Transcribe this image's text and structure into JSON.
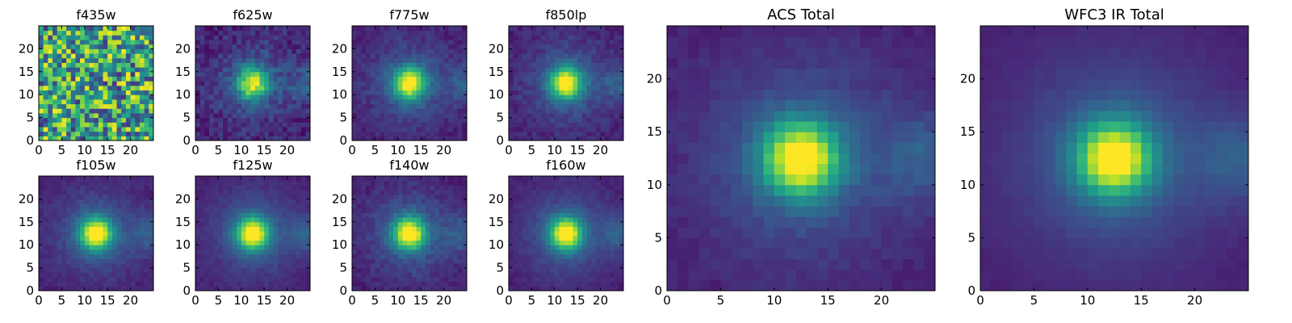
{
  "chart_data": [
    {
      "type": "heatmap",
      "title": "f435w",
      "x_ticks": [
        0,
        5,
        10,
        15,
        20
      ],
      "y_ticks": [
        0,
        5,
        10,
        15,
        20
      ],
      "xlim": [
        0,
        25
      ],
      "ylim": [
        0,
        25
      ],
      "grid": false,
      "colormap": "viridis",
      "source_center": null,
      "source_peak": 0.0,
      "noise_level": 1.0
    },
    {
      "type": "heatmap",
      "title": "f625w",
      "x_ticks": [
        0,
        5,
        10,
        15,
        20
      ],
      "y_ticks": [
        0,
        5,
        10,
        15,
        20
      ],
      "xlim": [
        0,
        25
      ],
      "ylim": [
        0,
        25
      ],
      "grid": false,
      "colormap": "viridis",
      "source_center": [
        12,
        12
      ],
      "source_peak": 0.85,
      "noise_level": 0.35
    },
    {
      "type": "heatmap",
      "title": "f775w",
      "x_ticks": [
        0,
        5,
        10,
        15,
        20
      ],
      "y_ticks": [
        0,
        5,
        10,
        15,
        20
      ],
      "xlim": [
        0,
        25
      ],
      "ylim": [
        0,
        25
      ],
      "grid": false,
      "colormap": "viridis",
      "source_center": [
        12,
        12
      ],
      "source_peak": 0.95,
      "noise_level": 0.22
    },
    {
      "type": "heatmap",
      "title": "f850lp",
      "x_ticks": [
        0,
        5,
        10,
        15,
        20
      ],
      "y_ticks": [
        0,
        5,
        10,
        15,
        20
      ],
      "xlim": [
        0,
        25
      ],
      "ylim": [
        0,
        25
      ],
      "grid": false,
      "colormap": "viridis",
      "source_center": [
        12,
        12
      ],
      "source_peak": 0.95,
      "noise_level": 0.22
    },
    {
      "type": "heatmap",
      "title": "f105w",
      "x_ticks": [
        0,
        5,
        10,
        15,
        20
      ],
      "y_ticks": [
        0,
        5,
        10,
        15,
        20
      ],
      "xlim": [
        0,
        25
      ],
      "ylim": [
        0,
        25
      ],
      "grid": false,
      "colormap": "viridis",
      "source_center": [
        12,
        12
      ],
      "source_peak": 1.0,
      "noise_level": 0.15
    },
    {
      "type": "heatmap",
      "title": "f125w",
      "x_ticks": [
        0,
        5,
        10,
        15,
        20
      ],
      "y_ticks": [
        0,
        5,
        10,
        15,
        20
      ],
      "xlim": [
        0,
        25
      ],
      "ylim": [
        0,
        25
      ],
      "grid": false,
      "colormap": "viridis",
      "source_center": [
        12,
        12
      ],
      "source_peak": 1.0,
      "noise_level": 0.12
    },
    {
      "type": "heatmap",
      "title": "f140w",
      "x_ticks": [
        0,
        5,
        10,
        15,
        20
      ],
      "y_ticks": [
        0,
        5,
        10,
        15,
        20
      ],
      "xlim": [
        0,
        25
      ],
      "ylim": [
        0,
        25
      ],
      "grid": false,
      "colormap": "viridis",
      "source_center": [
        12,
        12
      ],
      "source_peak": 1.0,
      "noise_level": 0.2
    },
    {
      "type": "heatmap",
      "title": "f160w",
      "x_ticks": [
        0,
        5,
        10,
        15,
        20
      ],
      "y_ticks": [
        0,
        5,
        10,
        15,
        20
      ],
      "xlim": [
        0,
        25
      ],
      "ylim": [
        0,
        25
      ],
      "grid": false,
      "colormap": "viridis",
      "source_center": [
        12,
        12
      ],
      "source_peak": 1.0,
      "noise_level": 0.12
    },
    {
      "type": "heatmap",
      "title": "ACS Total",
      "x_ticks": [
        0,
        5,
        10,
        15,
        20
      ],
      "y_ticks": [
        0,
        5,
        10,
        15,
        20
      ],
      "xlim": [
        0,
        25
      ],
      "ylim": [
        0,
        25
      ],
      "grid": false,
      "colormap": "viridis",
      "source_center": [
        12,
        12
      ],
      "source_peak": 1.0,
      "noise_level": 0.12
    },
    {
      "type": "heatmap",
      "title": "WFC3 IR Total",
      "x_ticks": [
        0,
        5,
        10,
        15,
        20
      ],
      "y_ticks": [
        0,
        5,
        10,
        15,
        20
      ],
      "xlim": [
        0,
        25
      ],
      "ylim": [
        0,
        25
      ],
      "grid": false,
      "colormap": "viridis",
      "source_center": [
        12,
        12
      ],
      "source_peak": 1.0,
      "noise_level": 0.05
    }
  ],
  "colors": {
    "colormap_stops": [
      "#440154",
      "#482878",
      "#3e4a89",
      "#31688e",
      "#26828e",
      "#1f9e89",
      "#35b779",
      "#6ece58",
      "#b5de2b",
      "#fde725"
    ],
    "frame": "#000000",
    "background": "#ffffff"
  }
}
